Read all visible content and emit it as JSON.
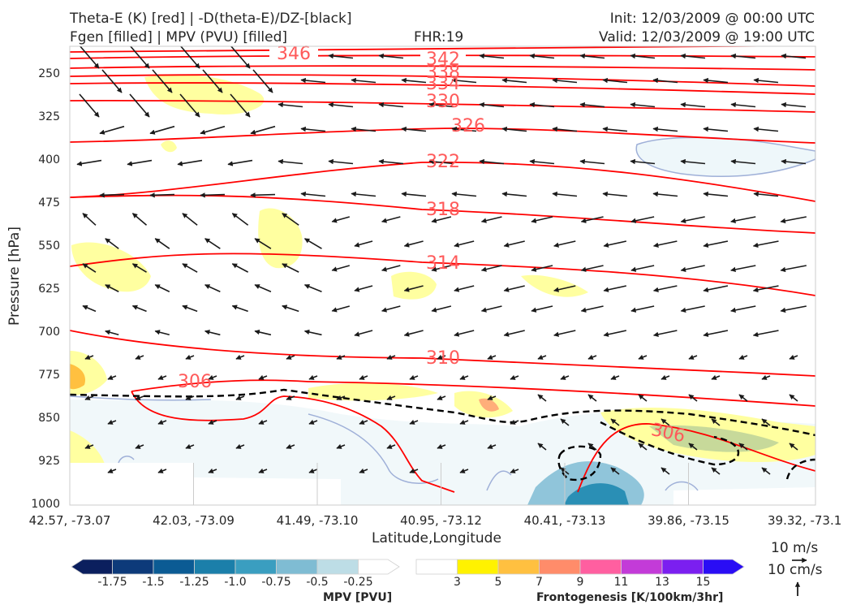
{
  "header": {
    "left_line1": "Theta-E (K) [red] | -D(theta-E)/DZ-[black]",
    "left_line2": "Fgen [filled] | MPV (PVU) [filled]",
    "center": "FHR:19",
    "right_line1": "Init: 12/03/2009 @ 00:00 UTC",
    "right_line2": "Valid: 12/03/2009 @ 19:00 UTC"
  },
  "chart_data": {
    "type": "cross-section",
    "xlabel": "Latitude,Longitude",
    "ylabel": "Pressure [hPa]",
    "ylim": [
      1000,
      200
    ],
    "x_ticks": [
      "42.57, -73.07",
      "42.03, -73.09",
      "41.49, -73.10",
      "40.95, -73.12",
      "40.41, -73.13",
      "39.86, -73.15",
      "39.32, -73.1"
    ],
    "y_ticks": [
      250,
      325,
      400,
      475,
      550,
      625,
      700,
      775,
      850,
      925,
      1000
    ],
    "theta_e_contour_labels": [
      "346",
      "342",
      "338",
      "334",
      "330",
      "326",
      "322",
      "318",
      "314",
      "310",
      "306",
      "306"
    ],
    "colorbars": {
      "mpv": {
        "label": "MPV [PVU]",
        "ticks": [
          "-1.75",
          "-1.5",
          "-1.25",
          "-1.0",
          "-0.75",
          "-0.5",
          "-0.25"
        ],
        "colors": [
          "#0b1f5e",
          "#0d3a7a",
          "#0b5b94",
          "#1b7faa",
          "#3a9ec0",
          "#7fbcd3",
          "#bddde6",
          "#ffffff"
        ]
      },
      "fgen": {
        "label": "Frontogenesis [K/100km/3hr]",
        "ticks": [
          "3",
          "5",
          "7",
          "9",
          "11",
          "13",
          "15"
        ],
        "colors": [
          "#ffffff",
          "#fff200",
          "#ffc040",
          "#ff8c6a",
          "#ff5fa0",
          "#c33bd8",
          "#7b1ff0",
          "#2a0df5"
        ]
      }
    },
    "colors": {
      "theta_e": "#ff0000",
      "stability": "#000000",
      "theta_label": "#ff5a5a"
    }
  },
  "reference_vectors": {
    "horizontal": "10 m/s",
    "vertical": "10 cm/s"
  }
}
